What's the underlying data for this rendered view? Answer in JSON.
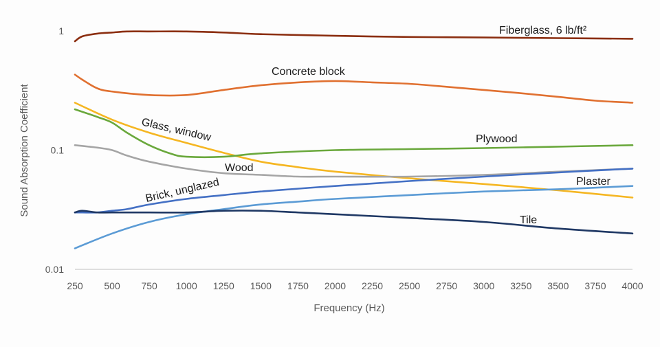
{
  "chart_data": {
    "type": "line",
    "title": "",
    "xlabel": "Frequency (Hz)",
    "ylabel": "Sound Absorption Coefficient",
    "xlim": [
      250,
      4000
    ],
    "ylim": [
      0.01,
      1
    ],
    "y_scale": "log",
    "grid": false,
    "legend": "none (series labeled inline)",
    "x_ticks": [
      "250",
      "500",
      "750",
      "1000",
      "1250",
      "1500",
      "1750",
      "2000",
      "2250",
      "2500",
      "2750",
      "3000",
      "3250",
      "3500",
      "3750",
      "4000"
    ],
    "y_ticks": [
      "1",
      "0.1",
      "0.01"
    ],
    "series": [
      {
        "name": "Fiberglass, 6 lb/ft²",
        "color": "#8b2e10",
        "x": [
          250,
          300,
          400,
          500,
          600,
          750,
          1000,
          1250,
          1500,
          2000,
          2500,
          3000,
          3500,
          4000
        ],
        "y": [
          0.82,
          0.9,
          0.95,
          0.97,
          0.99,
          0.99,
          0.99,
          0.97,
          0.94,
          0.91,
          0.89,
          0.88,
          0.87,
          0.86
        ]
      },
      {
        "name": "Concrete block",
        "color": "#e07030",
        "x": [
          250,
          300,
          400,
          500,
          750,
          1000,
          1250,
          1500,
          1750,
          2000,
          2250,
          2500,
          2750,
          3000,
          3250,
          3500,
          3750,
          4000
        ],
        "y": [
          0.43,
          0.39,
          0.33,
          0.31,
          0.29,
          0.29,
          0.32,
          0.35,
          0.37,
          0.38,
          0.37,
          0.36,
          0.34,
          0.32,
          0.3,
          0.28,
          0.26,
          0.25
        ]
      },
      {
        "name": "Glass, window",
        "color": "#f5b622",
        "x": [
          250,
          500,
          750,
          1000,
          1250,
          1500,
          1750,
          2000,
          2500,
          3000,
          3500,
          4000
        ],
        "y": [
          0.25,
          0.18,
          0.14,
          0.115,
          0.095,
          0.08,
          0.072,
          0.066,
          0.058,
          0.052,
          0.046,
          0.04
        ]
      },
      {
        "name": "Plywood",
        "color": "#6aa83c",
        "x": [
          250,
          400,
          500,
          600,
          750,
          900,
          1000,
          1250,
          1500,
          2000,
          2500,
          3000,
          3500,
          4000
        ],
        "y": [
          0.22,
          0.19,
          0.17,
          0.14,
          0.11,
          0.093,
          0.088,
          0.088,
          0.094,
          0.1,
          0.102,
          0.104,
          0.107,
          0.11
        ]
      },
      {
        "name": "Wood",
        "color": "#a5a5a5",
        "x": [
          250,
          400,
          500,
          600,
          750,
          1000,
          1250,
          1500,
          1750,
          2000,
          2500,
          3000,
          3500,
          4000
        ],
        "y": [
          0.11,
          0.105,
          0.1,
          0.09,
          0.08,
          0.07,
          0.064,
          0.062,
          0.06,
          0.06,
          0.06,
          0.062,
          0.066,
          0.07
        ]
      },
      {
        "name": "Brick, unglazed",
        "color": "#4470c4",
        "x": [
          250,
          300,
          400,
          500,
          600,
          750,
          1000,
          1250,
          1500,
          2000,
          2500,
          3000,
          3500,
          4000
        ],
        "y": [
          0.03,
          0.03,
          0.03,
          0.031,
          0.032,
          0.035,
          0.039,
          0.042,
          0.045,
          0.05,
          0.055,
          0.06,
          0.065,
          0.07
        ]
      },
      {
        "name": "Plaster",
        "color": "#5b9bd5",
        "x": [
          250,
          500,
          750,
          1000,
          1250,
          1500,
          1750,
          2000,
          2500,
          3000,
          3500,
          4000
        ],
        "y": [
          0.015,
          0.02,
          0.025,
          0.029,
          0.032,
          0.035,
          0.037,
          0.039,
          0.042,
          0.045,
          0.047,
          0.05
        ]
      },
      {
        "name": "Tile",
        "color": "#1f3864",
        "x": [
          250,
          300,
          400,
          500,
          750,
          1000,
          1250,
          1500,
          1750,
          2000,
          2500,
          3000,
          3500,
          4000
        ],
        "y": [
          0.03,
          0.031,
          0.03,
          0.03,
          0.03,
          0.03,
          0.031,
          0.031,
          0.03,
          0.029,
          0.027,
          0.025,
          0.022,
          0.02
        ]
      }
    ]
  }
}
